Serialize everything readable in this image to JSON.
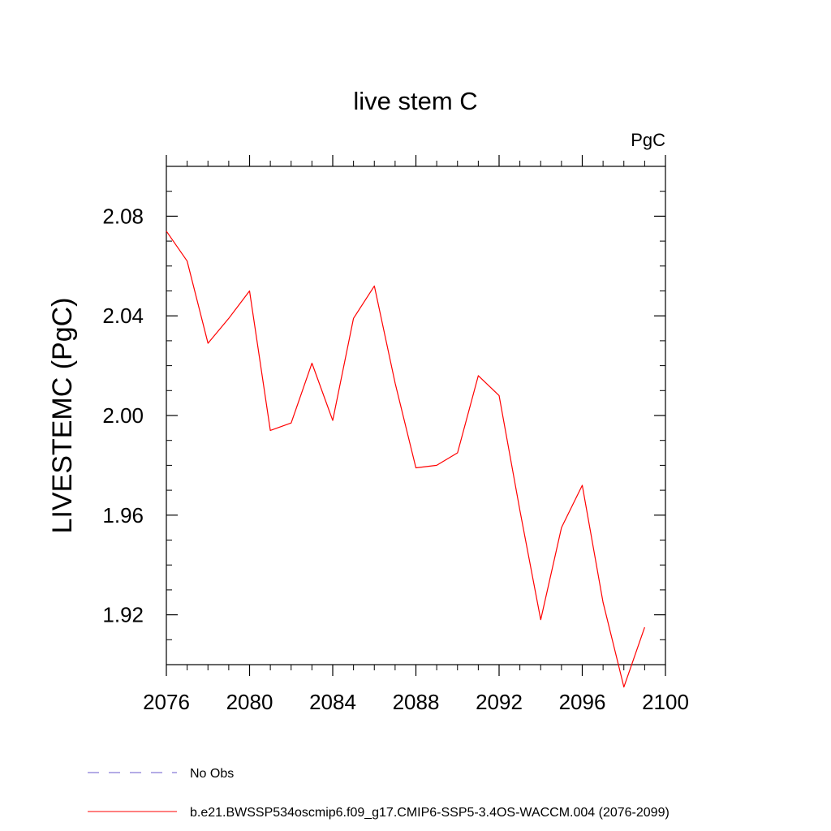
{
  "chart_data": {
    "type": "line",
    "title": "live stem C",
    "units_label": "PgC",
    "ylabel": "LIVESTEMC  (PgC)",
    "xlabel": "",
    "xlim": [
      2076,
      2100
    ],
    "ylim": [
      1.9,
      2.1
    ],
    "x_ticks": [
      "2076",
      "2080",
      "2084",
      "2088",
      "2092",
      "2096",
      "2100"
    ],
    "y_ticks": [
      "1.92",
      "1.96",
      "2.00",
      "2.04",
      "2.08"
    ],
    "x": [
      2076,
      2077,
      2078,
      2079,
      2080,
      2081,
      2082,
      2083,
      2084,
      2085,
      2086,
      2087,
      2088,
      2089,
      2090,
      2091,
      2092,
      2093,
      2094,
      2095,
      2096,
      2097,
      2098,
      2099
    ],
    "series": [
      {
        "name": "b.e21.BWSSP534oscmip6.f09_g17.CMIP6-SSP5-3.4OS-WACCM.004 (2076-2099)",
        "color": "#ff0000",
        "style": "solid",
        "values": [
          2.074,
          2.062,
          2.029,
          2.039,
          2.05,
          1.994,
          1.997,
          2.021,
          1.998,
          2.039,
          2.052,
          2.013,
          1.979,
          1.98,
          1.985,
          2.016,
          2.008,
          1.962,
          1.918,
          1.955,
          1.972,
          1.925,
          1.891,
          1.915
        ]
      }
    ],
    "legend": [
      {
        "label": "No Obs",
        "color": "#6a5acd",
        "style": "dashed"
      },
      {
        "label": "b.e21.BWSSP534oscmip6.f09_g17.CMIP6-SSP5-3.4OS-WACCM.004 (2076-2099)",
        "color": "#ff0000",
        "style": "solid"
      }
    ],
    "legend_position": "bottom",
    "grid": false
  }
}
